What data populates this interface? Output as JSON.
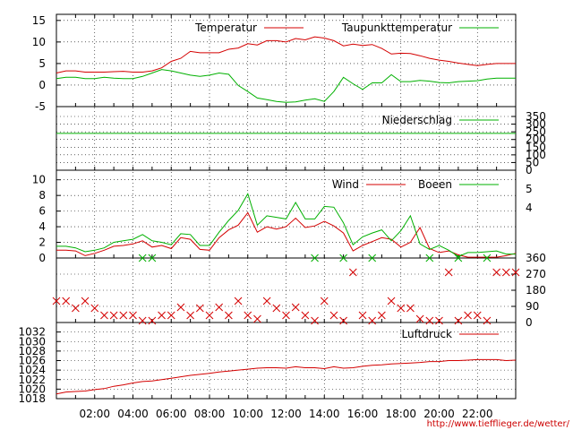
{
  "colors": {
    "primary": "#d40000",
    "secondary": "#00b000",
    "axis": "#000000",
    "grid": "#000000"
  },
  "credit": "http://www.tiefflieger.de/wetter/",
  "chart_data": [
    {
      "type": "line",
      "panel": "temperature",
      "x_range": [
        0,
        24
      ],
      "ylim": [
        -5,
        16
      ],
      "y_ticks": [
        -5,
        0,
        5,
        10,
        15
      ],
      "grid": true,
      "legend_position": "top",
      "series": [
        {
          "name": "Temperatur",
          "color": "#d40000",
          "x": [
            0,
            0.5,
            1,
            1.5,
            2,
            2.5,
            3,
            3.5,
            4,
            4.5,
            5,
            5.5,
            6,
            6.5,
            7,
            7.5,
            8,
            8.5,
            9,
            9.5,
            10,
            10.5,
            11,
            11.5,
            12,
            12.5,
            13,
            13.5,
            14,
            14.5,
            15,
            15.5,
            16,
            16.5,
            17,
            17.5,
            18,
            18.5,
            19,
            19.5,
            20,
            20.5,
            21,
            21.5,
            22,
            22.5,
            23,
            23.5,
            24
          ],
          "y": [
            2.8,
            3.3,
            3.3,
            3.0,
            3.0,
            3.0,
            3.1,
            3.2,
            3.0,
            3.0,
            3.3,
            4.0,
            5.5,
            6.2,
            7.8,
            7.5,
            7.5,
            7.5,
            8.3,
            8.6,
            9.6,
            9.3,
            10.3,
            10.3,
            10.0,
            10.8,
            10.5,
            11.2,
            10.9,
            10.3,
            9.1,
            9.5,
            9.2,
            9.4,
            8.5,
            7.2,
            7.4,
            7.3,
            6.8,
            6.2,
            5.8,
            5.5,
            5.1,
            4.8,
            4.5,
            4.8,
            5.0,
            5.0,
            5.0
          ]
        },
        {
          "name": "Taupunkttemperatur",
          "color": "#00b000",
          "x": [
            0,
            0.5,
            1,
            1.5,
            2,
            2.5,
            3,
            3.5,
            4,
            4.5,
            5,
            5.5,
            6,
            6.5,
            7,
            7.5,
            8,
            8.5,
            9,
            9.5,
            10,
            10.5,
            11,
            11.5,
            12,
            12.5,
            13,
            13.5,
            14,
            14.5,
            15,
            15.5,
            16,
            16.5,
            17,
            17.5,
            18,
            18.5,
            19,
            19.5,
            20,
            20.5,
            21,
            21.5,
            22,
            22.5,
            23,
            23.5,
            24
          ],
          "y": [
            1.5,
            1.8,
            1.8,
            1.5,
            1.5,
            1.8,
            1.6,
            1.5,
            1.5,
            2.0,
            2.8,
            3.6,
            3.3,
            2.8,
            2.3,
            2.0,
            2.3,
            2.8,
            2.5,
            -0.1,
            -1.5,
            -3.0,
            -3.4,
            -3.8,
            -4.0,
            -3.9,
            -3.5,
            -3.2,
            -3.8,
            -1.5,
            1.8,
            0.3,
            -1.0,
            0.5,
            0.5,
            2.4,
            0.8,
            0.8,
            1.1,
            0.9,
            0.6,
            0.5,
            0.8,
            0.9,
            1.0,
            1.4,
            1.6,
            1.6,
            1.6
          ]
        }
      ]
    },
    {
      "type": "line",
      "panel": "precipitation",
      "x_range": [
        0,
        24
      ],
      "ylim": [
        0,
        350
      ],
      "y_ticks": [
        0,
        50,
        100,
        150,
        200,
        250,
        300,
        350
      ],
      "axis_side": "right",
      "grid": true,
      "legend_position": "top-right",
      "series": [
        {
          "name": "Niederschlag",
          "color": "#00b000",
          "x": [
            0,
            24
          ],
          "y": [
            240,
            240
          ]
        }
      ]
    },
    {
      "type": "line",
      "panel": "wind",
      "x_range": [
        0,
        24
      ],
      "ylim": [
        0,
        11
      ],
      "y_ticks": [
        0,
        2,
        4,
        6,
        8,
        10
      ],
      "y2_ticks": [
        2,
        4,
        5
      ],
      "grid": true,
      "legend_position": "top-right",
      "series": [
        {
          "name": "Wind",
          "color": "#d40000",
          "x": [
            0,
            0.5,
            1,
            1.5,
            2,
            2.5,
            3,
            3.5,
            4,
            4.5,
            5,
            5.5,
            6,
            6.5,
            7,
            7.5,
            8,
            8.5,
            9,
            9.5,
            10,
            10.5,
            11,
            11.5,
            12,
            12.5,
            13,
            13.5,
            14,
            14.5,
            15,
            15.5,
            16,
            16.5,
            17,
            17.5,
            18,
            18.5,
            19,
            19.5,
            20,
            20.5,
            21,
            21.5,
            22,
            22.5,
            23,
            23.5,
            24
          ],
          "y": [
            1.0,
            1.0,
            0.9,
            0.3,
            0.6,
            1.0,
            1.5,
            1.6,
            1.8,
            2.2,
            1.4,
            1.6,
            1.2,
            2.6,
            2.4,
            1.1,
            1.0,
            2.6,
            3.6,
            4.2,
            5.8,
            3.3,
            4.0,
            3.7,
            4.0,
            5.1,
            3.9,
            4.1,
            4.7,
            4.1,
            3.2,
            0.9,
            1.6,
            2.1,
            2.6,
            2.4,
            1.4,
            2.0,
            3.9,
            1.2,
            0.7,
            0.9,
            0.4,
            0.1,
            0.1,
            0.1,
            0.1,
            0.3,
            0.6
          ]
        },
        {
          "name": "Boeen",
          "color": "#00b000",
          "x": [
            0,
            0.5,
            1,
            1.5,
            2,
            2.5,
            3,
            3.5,
            4,
            4.5,
            5,
            5.5,
            6,
            6.5,
            7,
            7.5,
            8,
            8.5,
            9,
            9.5,
            10,
            10.5,
            11,
            11.5,
            12,
            12.5,
            13,
            13.5,
            14,
            14.5,
            15,
            15.5,
            16,
            16.5,
            17,
            17.5,
            18,
            18.5,
            19,
            19.5,
            20,
            20.5,
            21,
            21.5,
            22,
            22.5,
            23,
            23.5,
            24
          ],
          "y": [
            1.5,
            1.5,
            1.3,
            0.8,
            1.0,
            1.3,
            2.0,
            2.2,
            2.4,
            3.0,
            2.2,
            2.0,
            1.7,
            3.1,
            3.0,
            1.6,
            1.6,
            3.3,
            4.8,
            6.1,
            8.2,
            4.2,
            5.4,
            5.2,
            5.0,
            7.1,
            5.0,
            5.0,
            6.6,
            6.5,
            4.5,
            1.7,
            2.7,
            3.2,
            3.6,
            2.2,
            3.5,
            5.4,
            1.8,
            1.1,
            1.6,
            1.0,
            0.2,
            0.7,
            0.7,
            0.8,
            0.9,
            0.5,
            0.5
          ]
        }
      ]
    },
    {
      "type": "scatter",
      "panel": "wind-direction",
      "x_range": [
        0,
        24
      ],
      "ylim": [
        0,
        360
      ],
      "y_ticks": [
        0,
        90,
        180,
        270,
        360
      ],
      "axis_side": "right",
      "grid": true,
      "series": [
        {
          "name": "",
          "color": "#d40000",
          "marker": "x",
          "x": [
            0,
            0.5,
            1,
            1.5,
            2,
            2.5,
            3,
            3.5,
            4,
            4.5,
            5,
            5.5,
            6,
            6.5,
            7,
            7.5,
            8,
            8.5,
            9,
            9.5,
            10,
            10.5,
            11,
            11.5,
            12,
            12.5,
            13,
            13.5,
            14,
            14.5,
            15,
            15.5,
            16,
            16.5,
            17,
            17.5,
            18,
            18.5,
            19,
            19.5,
            20,
            20.5,
            21,
            21.5,
            22,
            22.5,
            23,
            23.5,
            24
          ],
          "y": [
            120,
            120,
            80,
            120,
            80,
            40,
            40,
            40,
            40,
            10,
            10,
            40,
            40,
            85,
            40,
            80,
            40,
            85,
            40,
            120,
            40,
            20,
            120,
            80,
            40,
            85,
            40,
            10,
            120,
            40,
            10,
            280,
            40,
            10,
            40,
            120,
            80,
            80,
            20,
            10,
            10,
            280,
            10,
            40,
            40,
            10,
            280,
            280,
            280
          ]
        },
        {
          "name": "",
          "color": "#00b000",
          "marker": "x",
          "x": [
            4.5,
            5,
            13.5,
            15,
            16.5,
            19.5,
            21,
            22.5
          ],
          "y": [
            360,
            360,
            360,
            360,
            360,
            360,
            360,
            360
          ]
        }
      ]
    },
    {
      "type": "line",
      "panel": "pressure",
      "x_range": [
        0,
        24
      ],
      "ylim": [
        1018,
        1034
      ],
      "y_ticks": [
        1018,
        1020,
        1022,
        1024,
        1026,
        1028,
        1030,
        1032
      ],
      "grid": true,
      "legend_position": "top-right",
      "series": [
        {
          "name": "Luftdruck",
          "color": "#d40000",
          "x": [
            0,
            0.5,
            1,
            1.5,
            2,
            2.5,
            3,
            3.5,
            4,
            4.5,
            5,
            5.5,
            6,
            6.5,
            7,
            7.5,
            8,
            8.5,
            9,
            9.5,
            10,
            10.5,
            11,
            11.5,
            12,
            12.5,
            13,
            13.5,
            14,
            14.5,
            15,
            15.5,
            16,
            16.5,
            17,
            17.5,
            18,
            18.5,
            19,
            19.5,
            20,
            20.5,
            21,
            21.5,
            22,
            22.5,
            23,
            23.5,
            24
          ],
          "y": [
            1019.0,
            1019.4,
            1019.5,
            1019.6,
            1019.9,
            1020.1,
            1020.6,
            1020.9,
            1021.3,
            1021.6,
            1021.7,
            1022.0,
            1022.3,
            1022.6,
            1022.9,
            1023.1,
            1023.3,
            1023.6,
            1023.8,
            1024.0,
            1024.2,
            1024.4,
            1024.5,
            1024.5,
            1024.4,
            1024.7,
            1024.5,
            1024.5,
            1024.3,
            1024.7,
            1024.4,
            1024.5,
            1024.8,
            1025.0,
            1025.1,
            1025.3,
            1025.4,
            1025.5,
            1025.6,
            1025.8,
            1025.8,
            1026.0,
            1026.0,
            1026.1,
            1026.2,
            1026.2,
            1026.2,
            1026.0,
            1026.1
          ]
        }
      ]
    }
  ],
  "x_axis": {
    "ticks": [
      {
        "x": 2,
        "label": "02:00"
      },
      {
        "x": 4,
        "label": "04:00"
      },
      {
        "x": 6,
        "label": "06:00"
      },
      {
        "x": 8,
        "label": "08:00"
      },
      {
        "x": 10,
        "label": "10:00"
      },
      {
        "x": 12,
        "label": "12:00"
      },
      {
        "x": 14,
        "label": "14:00"
      },
      {
        "x": 16,
        "label": "16:00"
      },
      {
        "x": 18,
        "label": "18:00"
      },
      {
        "x": 20,
        "label": "20:00"
      },
      {
        "x": 22,
        "label": "22:00"
      }
    ]
  }
}
